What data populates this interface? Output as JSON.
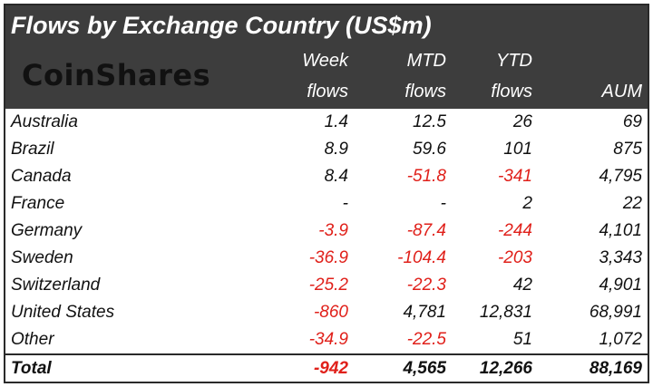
{
  "title": "Flows by Exchange Country (US$m)",
  "logo": "CoinShares",
  "columns": [
    {
      "line1": "Week",
      "line2": "flows"
    },
    {
      "line1": "MTD",
      "line2": "flows"
    },
    {
      "line1": "YTD",
      "line2": "flows"
    },
    {
      "line1": "",
      "line2": "AUM"
    }
  ],
  "rows": [
    {
      "country": "Australia",
      "week": "1.4",
      "mtd": "12.5",
      "ytd": "26",
      "aum": "69"
    },
    {
      "country": "Brazil",
      "week": "8.9",
      "mtd": "59.6",
      "ytd": "101",
      "aum": "875"
    },
    {
      "country": "Canada",
      "week": "8.4",
      "mtd": "-51.8",
      "ytd": "-341",
      "aum": "4,795"
    },
    {
      "country": "France",
      "week": "-",
      "mtd": "-",
      "ytd": "2",
      "aum": "22"
    },
    {
      "country": "Germany",
      "week": "-3.9",
      "mtd": "-87.4",
      "ytd": "-244",
      "aum": "4,101"
    },
    {
      "country": "Sweden",
      "week": "-36.9",
      "mtd": "-104.4",
      "ytd": "-203",
      "aum": "3,343"
    },
    {
      "country": "Switzerland",
      "week": "-25.2",
      "mtd": "-22.3",
      "ytd": "42",
      "aum": "4,901"
    },
    {
      "country": "United States",
      "week": "-860",
      "mtd": "4,781",
      "ytd": "12,831",
      "aum": "68,991"
    },
    {
      "country": "Other",
      "week": "-34.9",
      "mtd": "-22.5",
      "ytd": "51",
      "aum": "1,072"
    }
  ],
  "total": {
    "country": "Total",
    "week": "-942",
    "mtd": "4,565",
    "ytd": "12,266",
    "aum": "88,169"
  },
  "colors": {
    "header_bg": "#3d3d3d",
    "negative": "#e0201a",
    "text": "#111111"
  }
}
